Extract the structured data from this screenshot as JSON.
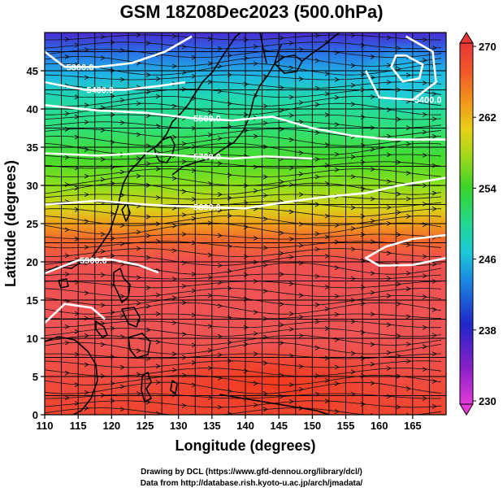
{
  "title": "GSM 18Z08Dec2023 (500.0hPa)",
  "x_axis": {
    "label": "Longitude (degrees)",
    "range": [
      110,
      170
    ],
    "ticks": [
      "110",
      "115",
      "120",
      "125",
      "130",
      "135",
      "140",
      "145",
      "150",
      "155",
      "160",
      "165"
    ]
  },
  "y_axis": {
    "label": "Latitude  (degrees)",
    "range": [
      0,
      50
    ],
    "ticks": [
      "0",
      "5",
      "10",
      "15",
      "20",
      "25",
      "30",
      "35",
      "40",
      "45"
    ]
  },
  "colorbar": {
    "range": [
      230,
      270
    ],
    "ticks": [
      "230",
      "238",
      "246",
      "254",
      "262",
      "270"
    ]
  },
  "contour_labels": [
    "5300.0",
    "5400.0",
    "5500.0",
    "5700.0",
    "5800.0",
    "5900.0",
    "5400.0"
  ],
  "credits": {
    "line1": "Drawing by DCL (https://www.gfd-dennou.org/library/dcl/)",
    "line2": "Data from http://database.rish.kyoto-u.ac.jp/arch/jmadata/"
  },
  "chart_data": {
    "type": "heatmap",
    "title": "GSM 18Z08Dec2023 (500.0hPa)",
    "xlabel": "Longitude (degrees)",
    "ylabel": "Latitude  (degrees)",
    "xlim": [
      110,
      170
    ],
    "ylim": [
      0,
      50
    ],
    "color_range": [
      230,
      270
    ],
    "colorbar_ticks": [
      230,
      238,
      246,
      254,
      262,
      270
    ],
    "contours": [
      {
        "label": "5300.0",
        "points": [
          [
            110,
            47.5
          ],
          [
            113,
            45.5
          ],
          [
            118,
            45.5
          ],
          [
            123,
            46
          ],
          [
            128,
            47.5
          ],
          [
            132,
            49.5
          ]
        ]
      },
      {
        "label": "5400.0",
        "points": [
          [
            110,
            43.5
          ],
          [
            116,
            42.5
          ],
          [
            122,
            42.5
          ],
          [
            127,
            43
          ],
          [
            131,
            43.5
          ]
        ]
      },
      {
        "label": "5500.0",
        "points": [
          [
            110,
            40.5
          ],
          [
            118,
            39.8
          ],
          [
            125,
            39.5
          ],
          [
            132,
            38.8
          ],
          [
            138,
            38.5
          ],
          [
            144,
            39
          ],
          [
            150,
            37.5
          ],
          [
            156,
            36.5
          ],
          [
            162,
            36
          ],
          [
            170,
            36
          ]
        ]
      },
      {
        "label": "5700.0",
        "points": [
          [
            110,
            34.2
          ],
          [
            118,
            33.9
          ],
          [
            125,
            34.2
          ],
          [
            132,
            33.8
          ],
          [
            138,
            33.5
          ],
          [
            143,
            33.8
          ],
          [
            150,
            33.5
          ]
        ]
      },
      {
        "label": "5800.0",
        "points": [
          [
            110,
            27.5
          ],
          [
            118,
            28
          ],
          [
            125,
            27.5
          ],
          [
            132,
            27.2
          ],
          [
            140,
            27
          ],
          [
            146,
            27.8
          ],
          [
            152,
            28.5
          ],
          [
            158,
            29
          ],
          [
            163,
            30
          ],
          [
            170,
            31
          ]
        ]
      },
      {
        "label": "5900.0",
        "points": [
          [
            110,
            18.5
          ],
          [
            115,
            20.2
          ],
          [
            120,
            20.3
          ],
          [
            124,
            19.6
          ],
          [
            127,
            18.6
          ]
        ]
      },
      {
        "label": "",
        "points": [
          [
            110,
            12
          ],
          [
            113,
            14.5
          ],
          [
            117,
            14
          ],
          [
            119,
            12.5
          ]
        ]
      },
      {
        "label": "",
        "points": [
          [
            164,
            47
          ],
          [
            166.5,
            45.8
          ],
          [
            166,
            44
          ],
          [
            163.5,
            43.6
          ],
          [
            161.8,
            45.5
          ],
          [
            162.5,
            47
          ],
          [
            164,
            47
          ]
        ]
      },
      {
        "label": "5400.0",
        "points": [
          [
            158,
            45
          ],
          [
            160,
            41.5
          ],
          [
            165,
            41.2
          ],
          [
            168.5,
            43.5
          ],
          [
            168,
            47.5
          ],
          [
            164,
            49.5
          ]
        ]
      },
      {
        "label": "",
        "points": [
          [
            170,
            23.5
          ],
          [
            165,
            23
          ],
          [
            161,
            22
          ],
          [
            158,
            20.5
          ],
          [
            160,
            19.5
          ],
          [
            165,
            19.6
          ],
          [
            170,
            20.5
          ]
        ]
      }
    ]
  }
}
